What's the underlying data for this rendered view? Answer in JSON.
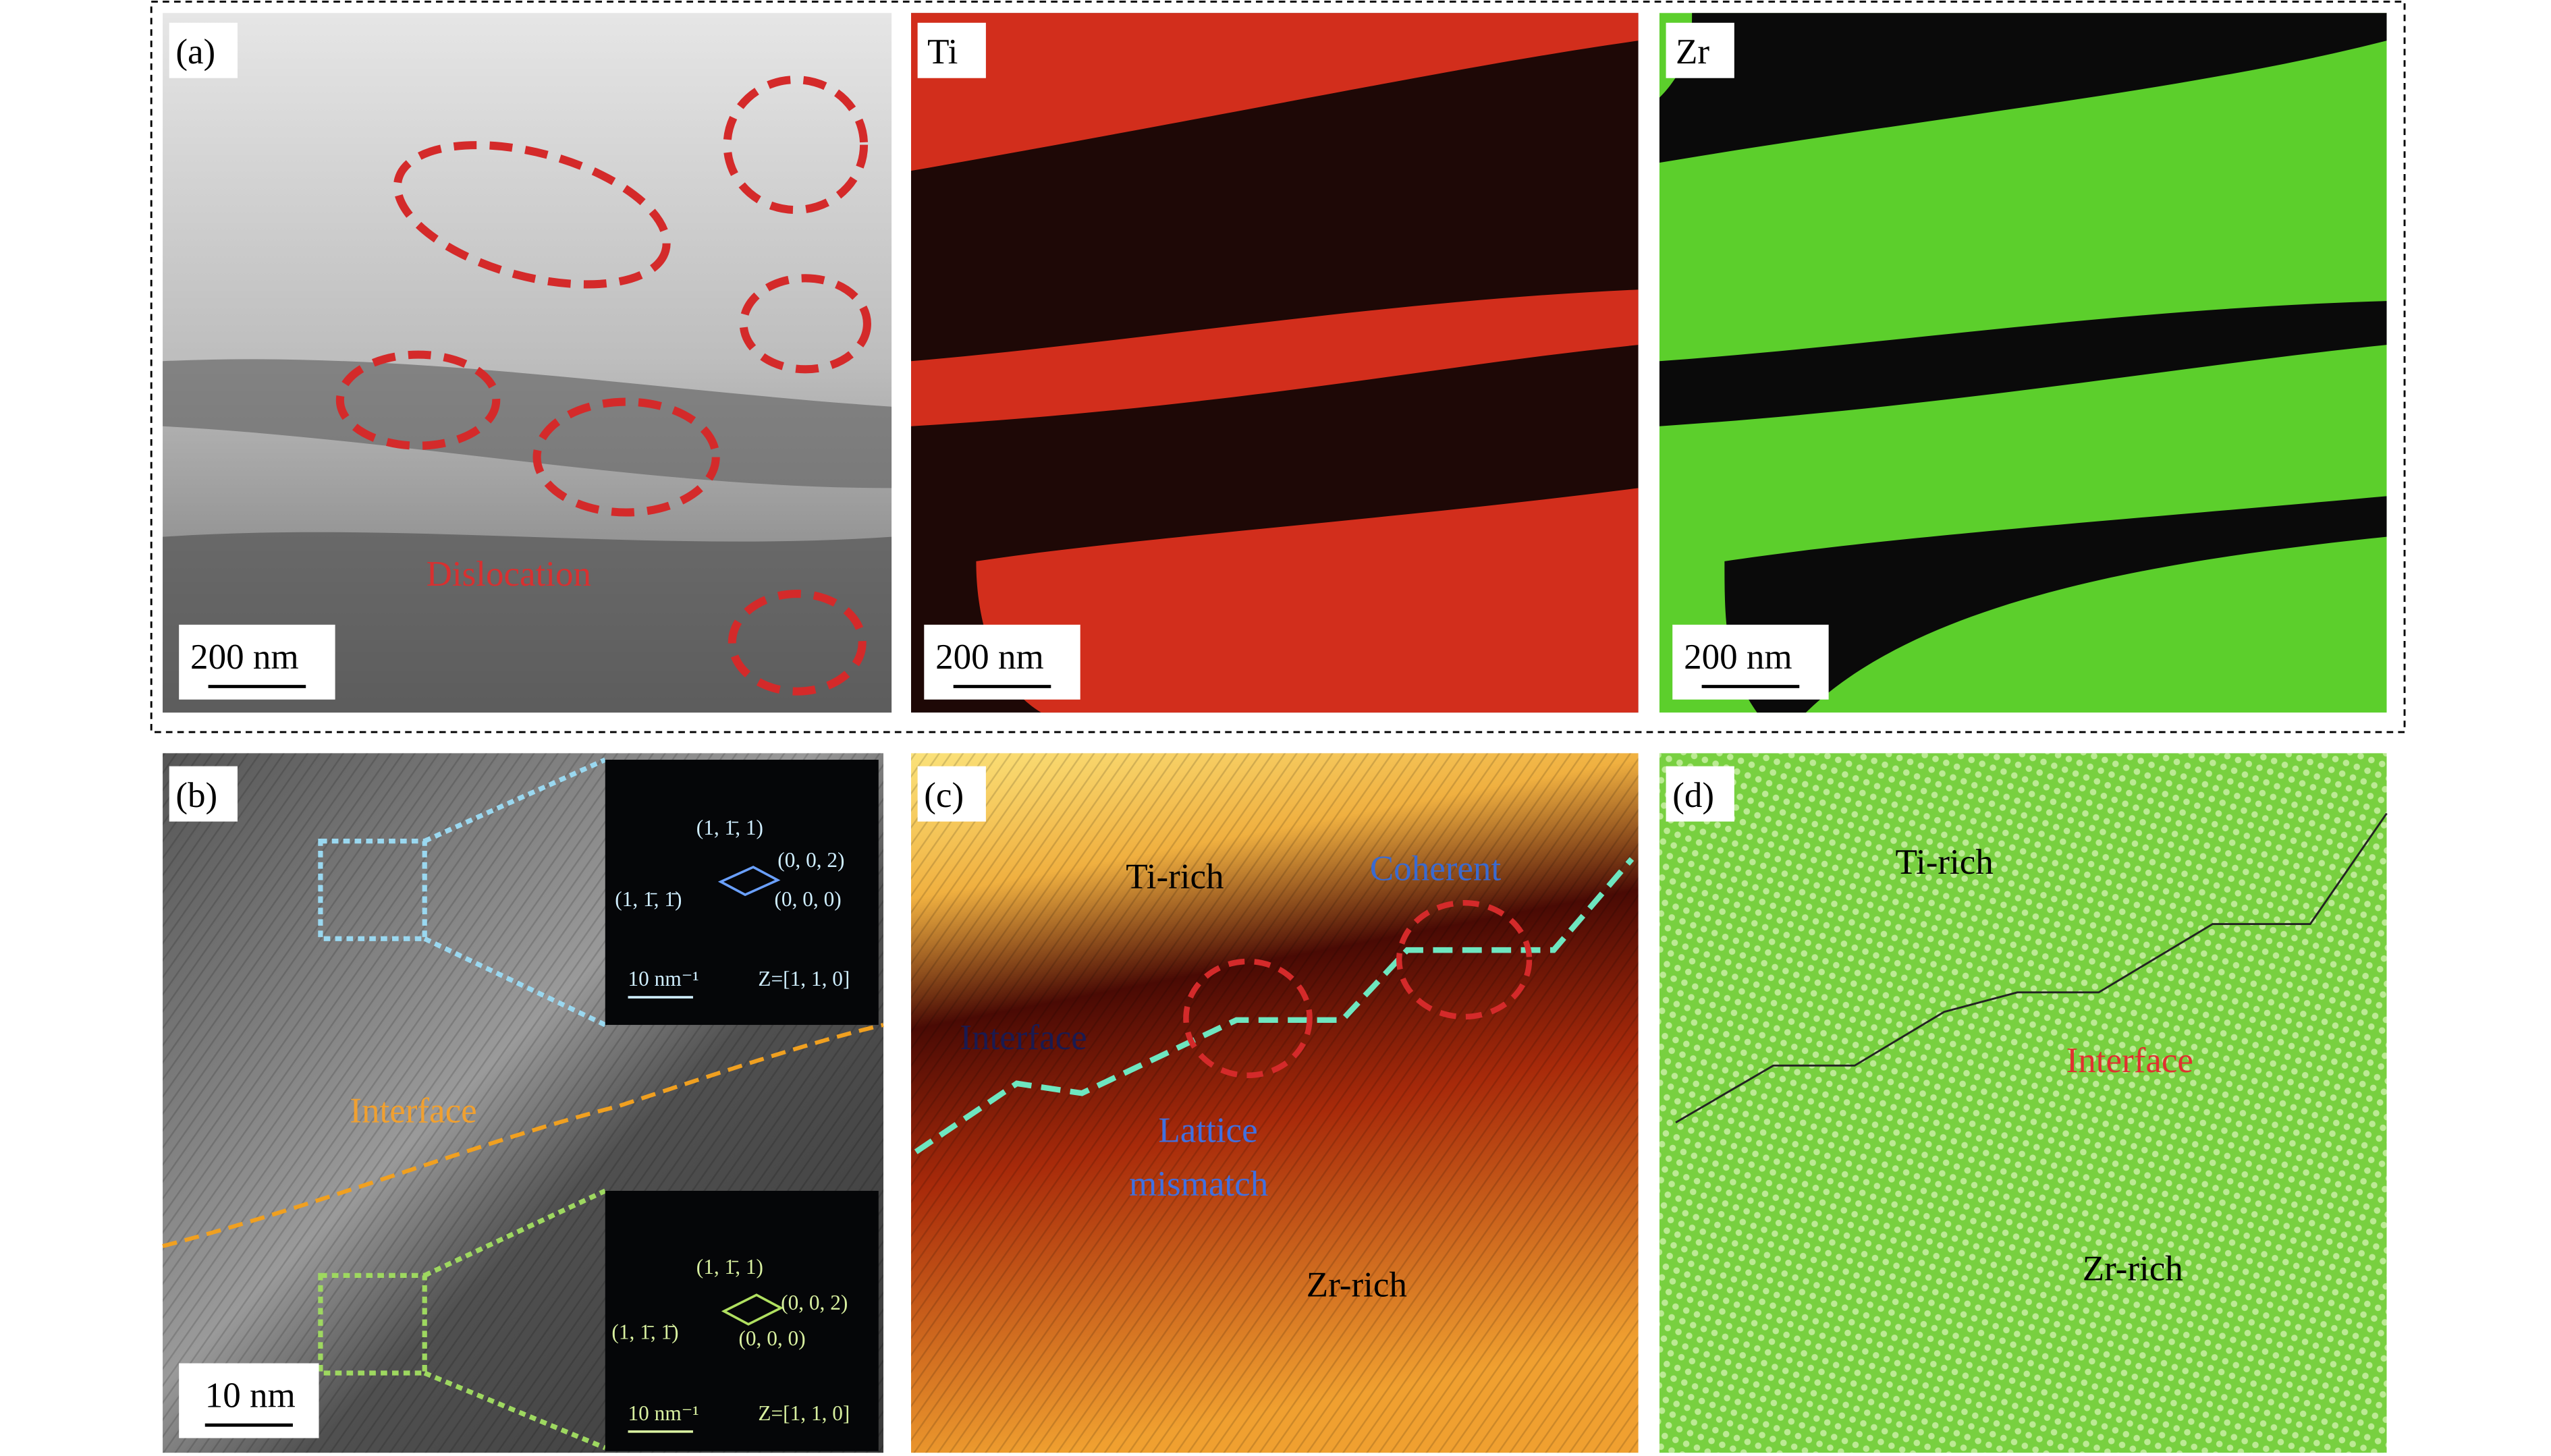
{
  "panels": [
    {
      "label": "(a)",
      "scale_bar": "200 nm",
      "annotation": "Dislocation"
    },
    {
      "label": "Ti",
      "scale_bar": "200 nm"
    },
    {
      "label": "Zr",
      "scale_bar": "200 nm"
    },
    {
      "label": "(b)",
      "scale_bar": "10 nm",
      "annotation": "Interface",
      "insets": [
        {
          "spots": [
            "(1, 1̄, 1)",
            "(0, 0, 2)",
            "(1, 1̄, 1̄)",
            "(0, 0, 0)"
          ],
          "scale": "10 nm⁻¹",
          "zone": "Z=[1, 1, 0]"
        },
        {
          "spots": [
            "(1, 1̄, 1)",
            "(0, 0, 2)",
            "(1, 1̄, 1̄)",
            "(0, 0, 0)"
          ],
          "scale": "10 nm⁻¹",
          "zone": "Z=[1, 1, 0]"
        }
      ]
    },
    {
      "label": "(c)",
      "annotations": [
        "Ti-rich",
        "Coherent",
        "Interface",
        "Lattice",
        "mismatch",
        "Zr-rich"
      ]
    },
    {
      "label": "(d)",
      "annotations": [
        "Ti-rich",
        "Interface",
        "Zr-rich"
      ]
    }
  ]
}
